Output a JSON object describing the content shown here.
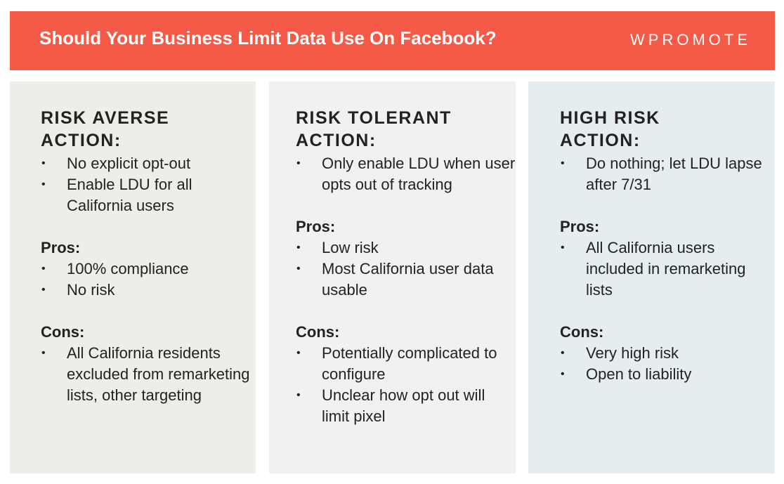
{
  "header": {
    "title": "Should Your Business Limit Data Use On Facebook?",
    "logo": "WPROMOTE"
  },
  "columns": [
    {
      "title_line1": "RISK AVERSE",
      "title_line2": "ACTION:",
      "actions": [
        "No explicit opt-out",
        "Enable LDU for all California users"
      ],
      "pros_label": "Pros:",
      "pros": [
        "100% compliance",
        "No risk"
      ],
      "cons_label": "Cons:",
      "cons": [
        "All California residents excluded from remarketing lists, other targeting"
      ]
    },
    {
      "title_line1": "RISK TOLERANT",
      "title_line2": "ACTION:",
      "actions": [
        "Only enable LDU when user opts out of tracking"
      ],
      "pros_label": "Pros:",
      "pros": [
        "Low risk",
        "Most California user data usable"
      ],
      "cons_label": "Cons:",
      "cons": [
        "Potentially complicated to configure",
        "Unclear how opt out will limit pixel"
      ]
    },
    {
      "title_line1": "HIGH RISK",
      "title_line2": "ACTION:",
      "actions": [
        "Do nothing; let LDU lapse after 7/31"
      ],
      "pros_label": "Pros:",
      "pros": [
        "All California users included in remarketing lists"
      ],
      "cons_label": "Cons:",
      "cons": [
        "Very high risk",
        "Open to liability"
      ]
    }
  ],
  "colors": {
    "header_bg": "#f45a47",
    "col1_bg": "#eeede7",
    "col2_bg": "#f2f1f1",
    "col3_bg": "#e5edf0"
  }
}
